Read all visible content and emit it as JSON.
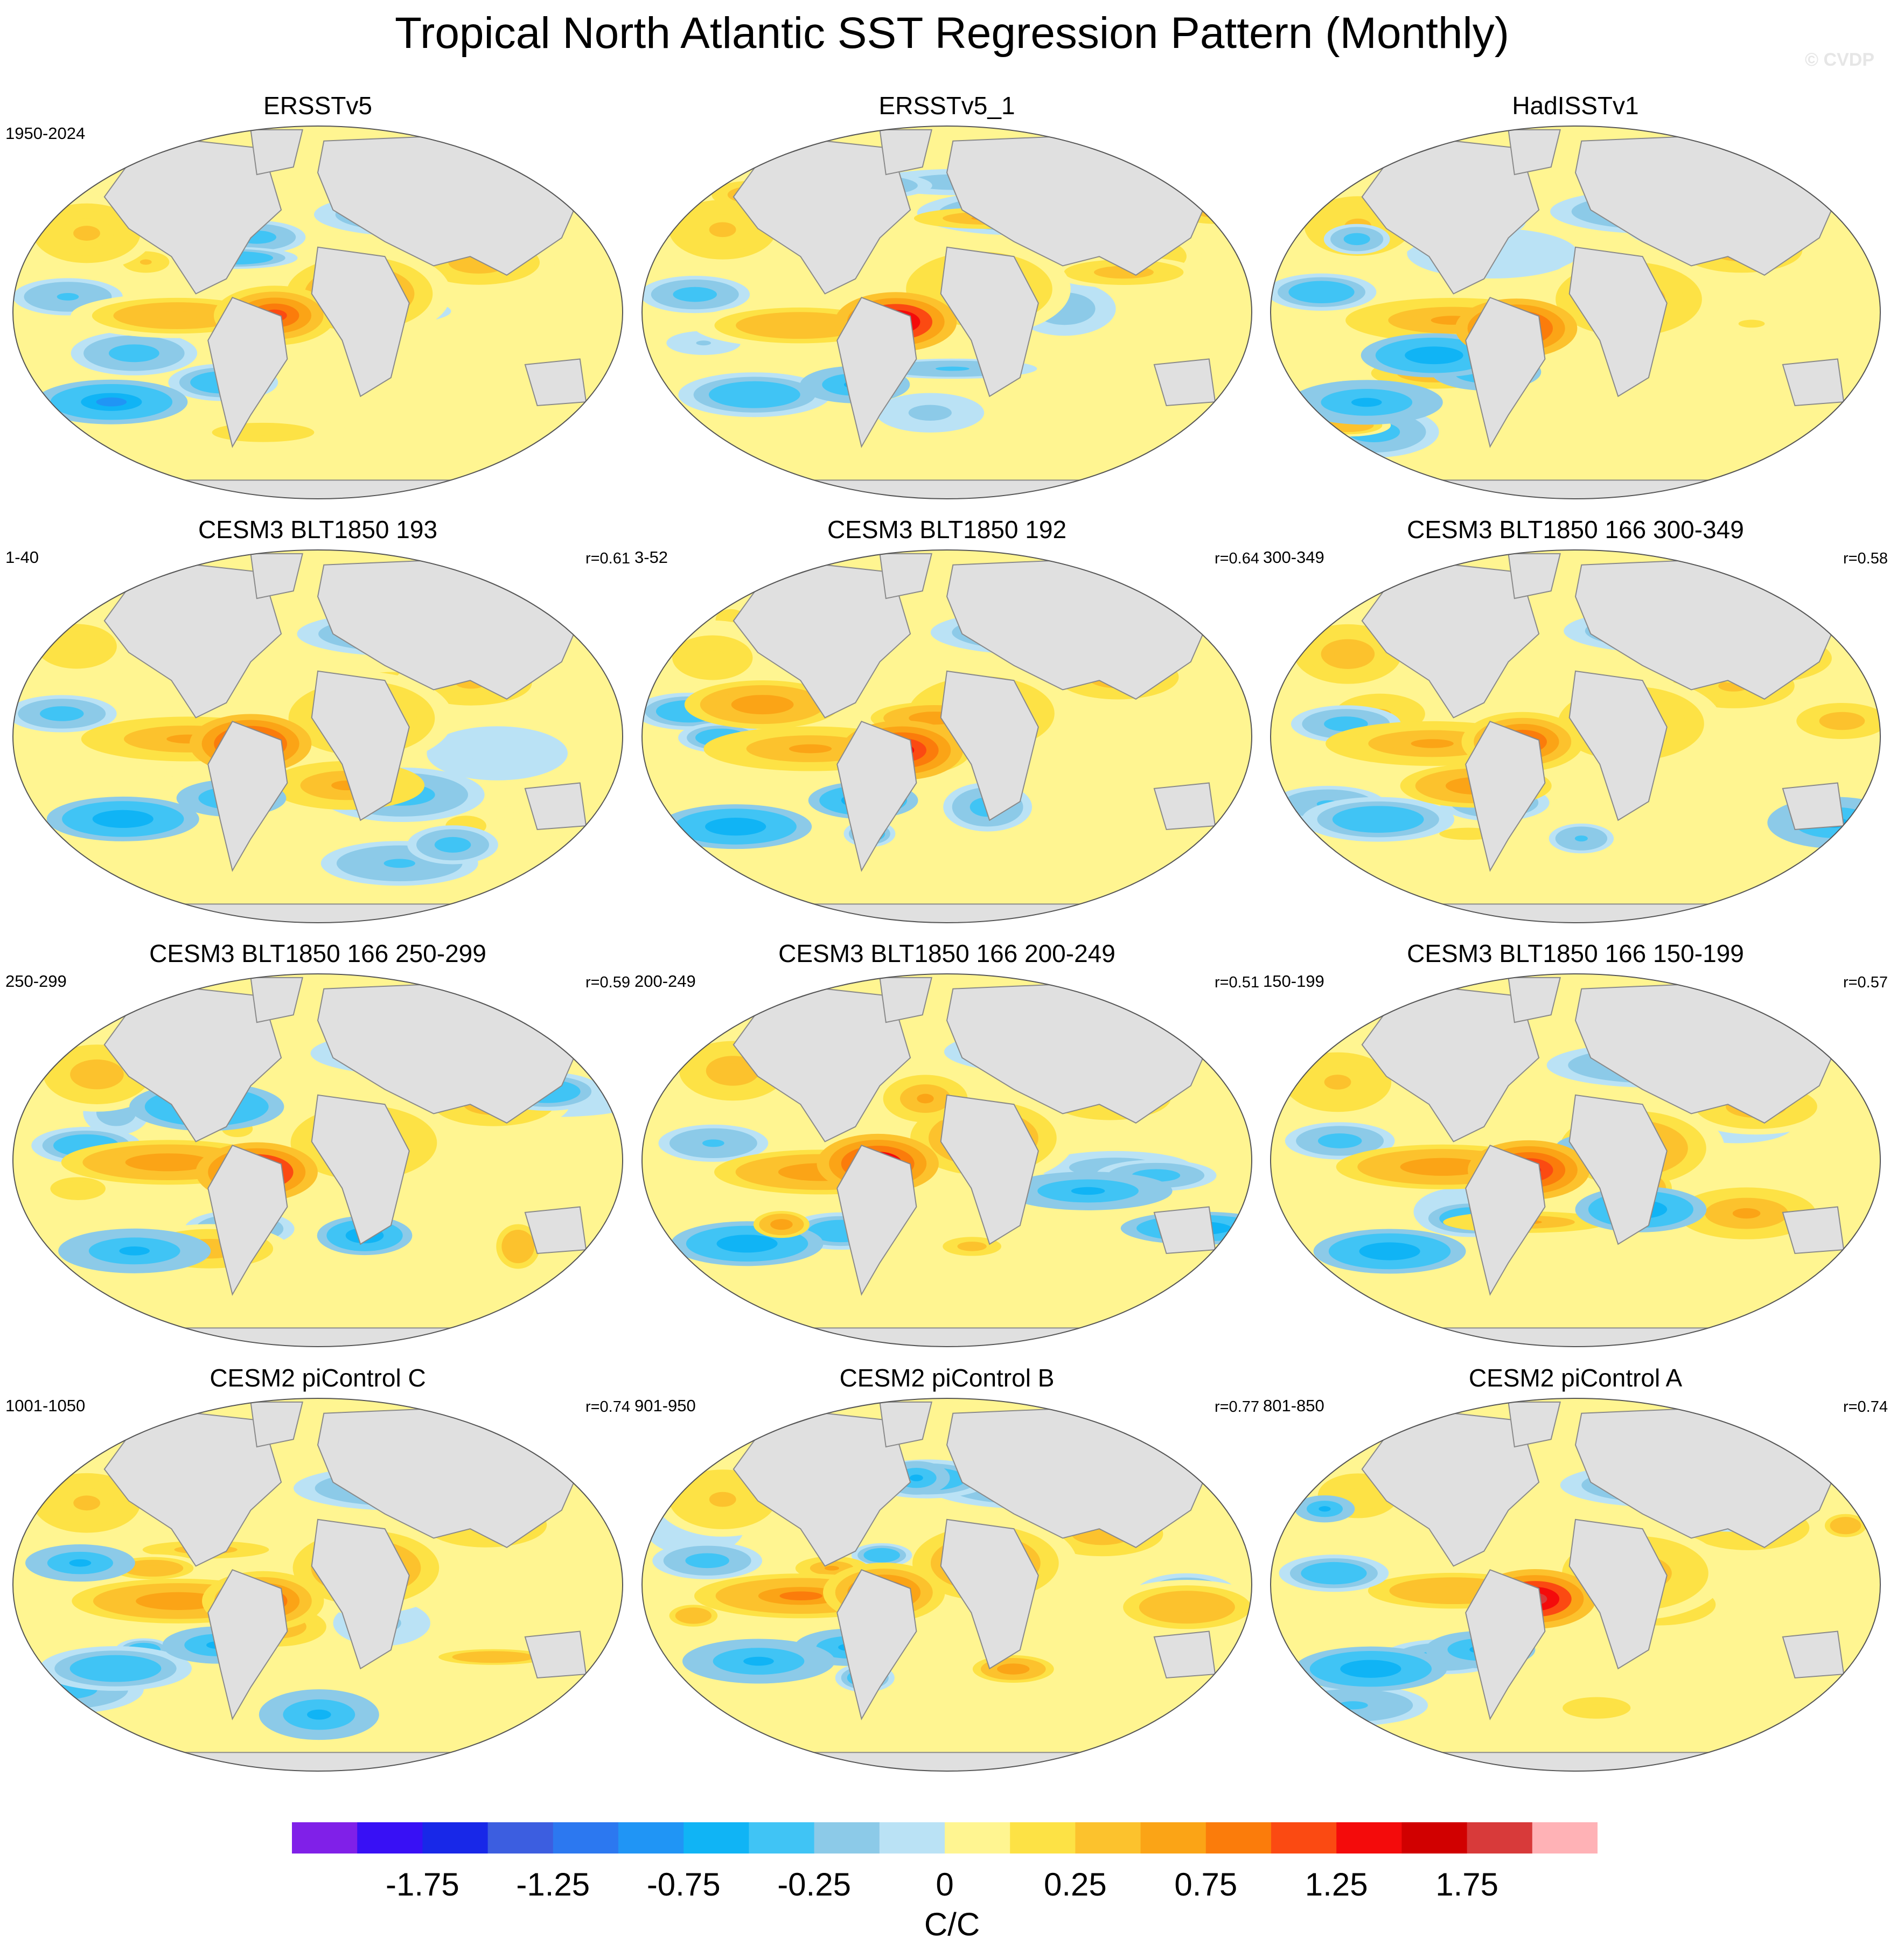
{
  "title": "Tropical North Atlantic SST Regression Pattern (Monthly)",
  "watermark": "© CVDP",
  "colors": {
    "land": "#e0e0e0",
    "palette": [
      "#8020e8",
      "#3810f5",
      "#1828e8",
      "#3c5ee0",
      "#2c78f0",
      "#2095f5",
      "#10b4f5",
      "#40c4f5",
      "#8ccae8",
      "#bae2f5",
      "#fff591",
      "#fde245",
      "#fcc22d",
      "#fba416",
      "#fb7c0b",
      "#fb4a12",
      "#f40b0b",
      "#d10000",
      "#d83a3a",
      "#ffb2b6"
    ]
  },
  "chart_data": {
    "type": "heatmap",
    "title": "Tropical North Atlantic SST Regression Pattern (Monthly)",
    "projection": "Robinson (global)",
    "colorbar": {
      "label": "C/C",
      "ticks": [
        "-1.75",
        "-1.25",
        "-0.75",
        "-0.25",
        "0",
        "0.25",
        "0.75",
        "1.25",
        "1.75"
      ],
      "levels": [
        -2.0,
        -1.75,
        -1.5,
        -1.25,
        -1.0,
        -0.75,
        -0.5,
        -0.25,
        -0.1,
        0,
        0.1,
        0.25,
        0.5,
        0.75,
        1.0,
        1.25,
        1.5,
        1.75,
        2.0
      ]
    },
    "panels": [
      {
        "title": "ERSSTv5",
        "years": "1950-2024",
        "r": ""
      },
      {
        "title": "ERSSTv5_1",
        "years": "",
        "r": ""
      },
      {
        "title": "HadISSTv1",
        "years": "",
        "r": ""
      },
      {
        "title": "CESM3 BLT1850 193",
        "years": "1-40",
        "r": "r=0.61"
      },
      {
        "title": "CESM3 BLT1850 192",
        "years": "3-52",
        "r": "r=0.64"
      },
      {
        "title": "CESM3 BLT1850 166 300-349",
        "years": "300-349",
        "r": "r=0.58"
      },
      {
        "title": "CESM3 BLT1850 166 250-299",
        "years": "250-299",
        "r": "r=0.59"
      },
      {
        "title": "CESM3 BLT1850 166 200-249",
        "years": "200-249",
        "r": "r=0.51"
      },
      {
        "title": "CESM3 BLT1850 166 150-199",
        "years": "150-199",
        "r": "r=0.57"
      },
      {
        "title": "CESM2 piControl C",
        "years": "1001-1050",
        "r": "r=0.74"
      },
      {
        "title": "CESM2 piControl B",
        "years": "901-950",
        "r": "r=0.77"
      },
      {
        "title": "CESM2 piControl A",
        "years": "801-850",
        "r": "r=0.74"
      }
    ]
  }
}
